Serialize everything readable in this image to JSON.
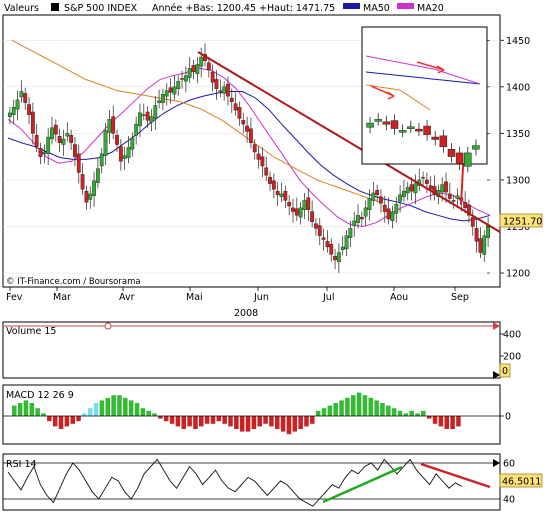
{
  "header": {
    "valeurs_label": "Valeurs",
    "index_name": "S&P 500 INDEX",
    "year_stats": "Année +Bas: 1200.45 +Haut: 1471.75",
    "ma50_label": "MA50",
    "ma20_label": "MA20"
  },
  "credit": "© IT-Finance.com / Boursorama",
  "year_label": "2008",
  "last_value_badge": "1251.70",
  "colors": {
    "up_candle": "#33aa33",
    "down_candle": "#cc2222",
    "ma50": "#1a1aaa",
    "ma20": "#cc33cc",
    "ma200": "#e08020",
    "trend_line": "#b01818",
    "rsi_trend_up": "#22aa22",
    "badge_bg": "#ffe27a"
  },
  "chart_data": [
    {
      "type": "candlestick",
      "title": "S&P 500 INDEX",
      "x_ticks": [
        "Fev",
        "Mar",
        "Avr",
        "Mai",
        "Jun",
        "Jul",
        "Aou",
        "Sep"
      ],
      "y_ticks": [
        1200,
        1250,
        1300,
        1350,
        1400,
        1450
      ],
      "ylim": [
        1185,
        1475
      ],
      "year_low": 1200.45,
      "year_high": 1471.75,
      "last_close": 1251.7,
      "close_series": [
        1372,
        1378,
        1386,
        1395,
        1383,
        1370,
        1350,
        1336,
        1325,
        1330,
        1346,
        1356,
        1349,
        1340,
        1344,
        1350,
        1340,
        1325,
        1308,
        1290,
        1276,
        1285,
        1299,
        1312,
        1328,
        1353,
        1365,
        1350,
        1338,
        1320,
        1326,
        1335,
        1345,
        1360,
        1372,
        1370,
        1364,
        1368,
        1380,
        1385,
        1392,
        1396,
        1394,
        1400,
        1406,
        1408,
        1412,
        1420,
        1416,
        1424,
        1432,
        1428,
        1418,
        1405,
        1398,
        1395,
        1400,
        1390,
        1384,
        1375,
        1366,
        1360,
        1352,
        1340,
        1330,
        1322,
        1315,
        1305,
        1296,
        1290,
        1284,
        1285,
        1278,
        1272,
        1266,
        1262,
        1270,
        1278,
        1268,
        1255,
        1248,
        1240,
        1236,
        1228,
        1220,
        1214,
        1222,
        1228,
        1240,
        1248,
        1256,
        1262,
        1258,
        1270,
        1280,
        1286,
        1284,
        1275,
        1266,
        1258,
        1266,
        1274,
        1284,
        1288,
        1292,
        1288,
        1296,
        1300,
        1302,
        1296,
        1290,
        1284,
        1289,
        1295,
        1287,
        1280,
        1277,
        1283,
        1278,
        1270,
        1262,
        1250,
        1234,
        1222,
        1240,
        1252
      ],
      "series": [
        {
          "name": "MA50",
          "values": [
            1345,
            1340,
            1336,
            1330,
            1324,
            1322,
            1322,
            1324,
            1330,
            1340,
            1350,
            1362,
            1372,
            1380,
            1386,
            1390,
            1393,
            1395,
            1395,
            1388,
            1376,
            1360,
            1345,
            1330,
            1316,
            1305,
            1296,
            1288,
            1283,
            1279,
            1276,
            1272,
            1266,
            1262,
            1258,
            1256,
            1258,
            1262
          ]
        },
        {
          "name": "MA20",
          "values": [
            1365,
            1355,
            1340,
            1325,
            1318,
            1320,
            1330,
            1345,
            1360,
            1372,
            1385,
            1398,
            1408,
            1412,
            1415,
            1420,
            1418,
            1410,
            1398,
            1380,
            1360,
            1340,
            1320,
            1300,
            1285,
            1272,
            1260,
            1252,
            1250,
            1254,
            1262,
            1270,
            1276,
            1282,
            1286,
            1284,
            1276,
            1268,
            1262
          ]
        },
        {
          "name": "MA200",
          "values": [
            1450,
            1444,
            1438,
            1432,
            1426,
            1420,
            1414,
            1408,
            1404,
            1400,
            1396,
            1394,
            1392,
            1390,
            1388,
            1386,
            1384,
            1380,
            1376,
            1370,
            1364,
            1356,
            1348,
            1340,
            1332,
            1324,
            1318,
            1312,
            1306,
            1300,
            1296,
            1292,
            1288,
            1284,
            1280,
            1276
          ]
        }
      ]
    },
    {
      "type": "bar",
      "title": "Volume 15",
      "y_ticks": [
        200,
        400
      ],
      "last_value": "0",
      "values": []
    },
    {
      "type": "bar",
      "title": "MACD 12 26 9",
      "y_ticks": [
        0
      ],
      "values": [
        4,
        5,
        6,
        5,
        3,
        1,
        -2,
        -4,
        -5,
        -4,
        -3,
        -2,
        1,
        3,
        5,
        6,
        7,
        8,
        8,
        7,
        6,
        5,
        3,
        2,
        1,
        -1,
        -2,
        -3,
        -4,
        -5,
        -4,
        -5,
        -4,
        -3,
        -3,
        -2,
        -3,
        -4,
        -5,
        -6,
        -6,
        -5,
        -4,
        -3,
        -4,
        -5,
        -6,
        -7,
        -6,
        -5,
        -4,
        -3,
        2,
        3,
        4,
        5,
        6,
        7,
        8,
        9,
        8,
        7,
        6,
        5,
        4,
        3,
        2,
        1,
        2,
        1,
        2,
        -1,
        -3,
        -4,
        -5,
        -5,
        -4
      ]
    },
    {
      "type": "line",
      "title": "RSI 14",
      "y_ticks": [
        40,
        60
      ],
      "last_value": "46.5011",
      "values": [
        55,
        50,
        45,
        52,
        58,
        48,
        42,
        38,
        46,
        54,
        60,
        56,
        50,
        44,
        40,
        46,
        52,
        50,
        44,
        40,
        46,
        54,
        58,
        62,
        56,
        50,
        46,
        52,
        58,
        54,
        48,
        52,
        56,
        50,
        46,
        44,
        48,
        52,
        50,
        46,
        42,
        46,
        50,
        48,
        44,
        40,
        38,
        36,
        40,
        44,
        48,
        46,
        52,
        56,
        54,
        58,
        60,
        56,
        62,
        58,
        54,
        58,
        62,
        56,
        52,
        48,
        54,
        50,
        46,
        49,
        47
      ]
    }
  ]
}
